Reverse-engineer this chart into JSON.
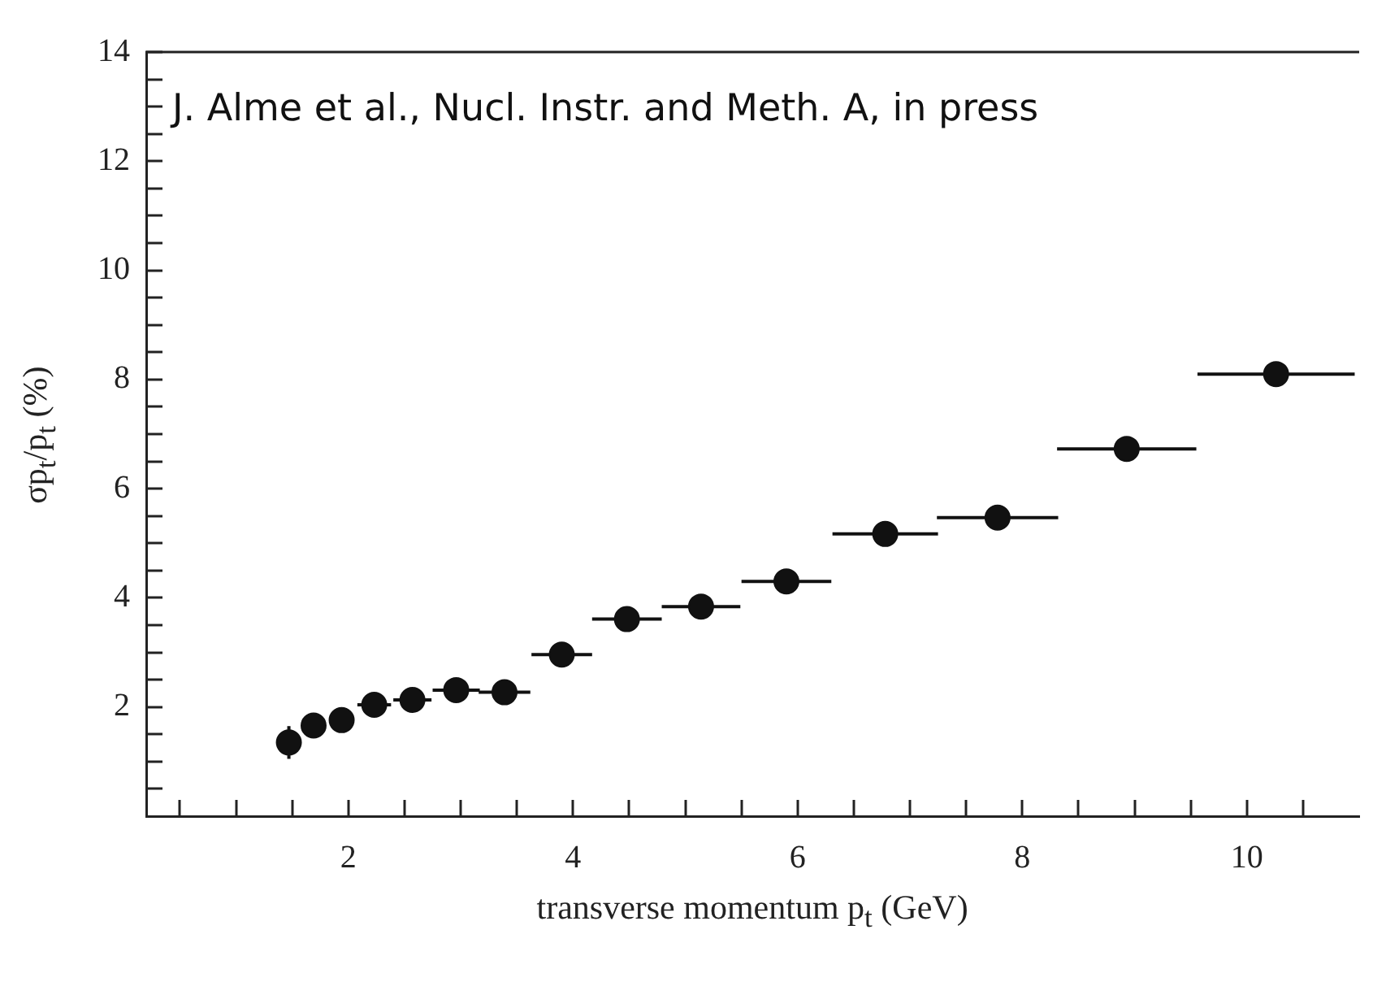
{
  "chart_data": {
    "type": "scatter",
    "xlabel": "transverse momentum p$_{t}$ (GeV)",
    "ylabel": "σp$_{t}$/p$_{t}$ (%)",
    "annotations": [
      "J. Alme et al., Nucl. Instr. and Meth. A, in press"
    ],
    "series": [
      {
        "color": "#111111",
        "x": [
          1.47,
          1.69,
          1.94,
          2.23,
          2.57,
          2.96,
          3.39,
          3.9,
          4.48,
          5.14,
          5.9,
          6.78,
          7.78,
          8.93,
          10.26
        ],
        "values": [
          1.35,
          1.66,
          1.76,
          2.04,
          2.13,
          2.31,
          2.27,
          2.96,
          3.61,
          3.84,
          4.3,
          5.17,
          5.47,
          6.73,
          8.1
        ],
        "errors": [
          0.3,
          null,
          null,
          null,
          null,
          null,
          null,
          null,
          null,
          null,
          null,
          null,
          null,
          null,
          0.15
        ],
        "xerrors": [
          null,
          null,
          null,
          0.15,
          0.17,
          0.21,
          0.23,
          0.27,
          0.31,
          0.35,
          0.4,
          0.47,
          0.54,
          0.62,
          0.7
        ]
      }
    ],
    "xlim": [
      0.2,
      11
    ],
    "ylim": [
      0,
      14
    ],
    "xticks": [
      {
        "value": 0.5,
        "label": null
      },
      {
        "value": 1,
        "label": null
      },
      {
        "value": 1.5,
        "label": null
      },
      2,
      {
        "value": 2.5,
        "label": null
      },
      {
        "value": 3,
        "label": null
      },
      {
        "value": 3.5,
        "label": null
      },
      4,
      {
        "value": 4.5,
        "label": null
      },
      {
        "value": 5,
        "label": null
      },
      {
        "value": 5.5,
        "label": null
      },
      6,
      {
        "value": 6.5,
        "label": null
      },
      {
        "value": 7,
        "label": null
      },
      {
        "value": 7.5,
        "label": null
      },
      8,
      {
        "value": 8.5,
        "label": null
      },
      {
        "value": 9,
        "label": null
      },
      {
        "value": 9.5,
        "label": null
      },
      10,
      {
        "value": 10.5,
        "label": null
      }
    ],
    "yticks": [
      {
        "value": 0.5,
        "label": null
      },
      {
        "value": 1,
        "label": null
      },
      {
        "value": 1.5,
        "label": null
      },
      2,
      {
        "value": 2.5,
        "label": null
      },
      {
        "value": 3,
        "label": null
      },
      {
        "value": 3.5,
        "label": null
      },
      4,
      {
        "value": 4.5,
        "label": null
      },
      {
        "value": 5,
        "label": null
      },
      {
        "value": 5.5,
        "label": null
      },
      6,
      {
        "value": 6.5,
        "label": null
      },
      {
        "value": 7,
        "label": null
      },
      {
        "value": 7.5,
        "label": null
      },
      8,
      {
        "value": 8.5,
        "label": null
      },
      {
        "value": 9,
        "label": null
      },
      {
        "value": 9.5,
        "label": null
      },
      10,
      {
        "value": 10.5,
        "label": null
      },
      {
        "value": 11,
        "label": null
      },
      {
        "value": 11.5,
        "label": null
      },
      12,
      {
        "value": 12.5,
        "label": null
      },
      {
        "value": 13,
        "label": null
      },
      {
        "value": 13.5,
        "label": null
      },
      14
    ],
    "grid": false,
    "legend": false,
    "marker": "circle"
  }
}
